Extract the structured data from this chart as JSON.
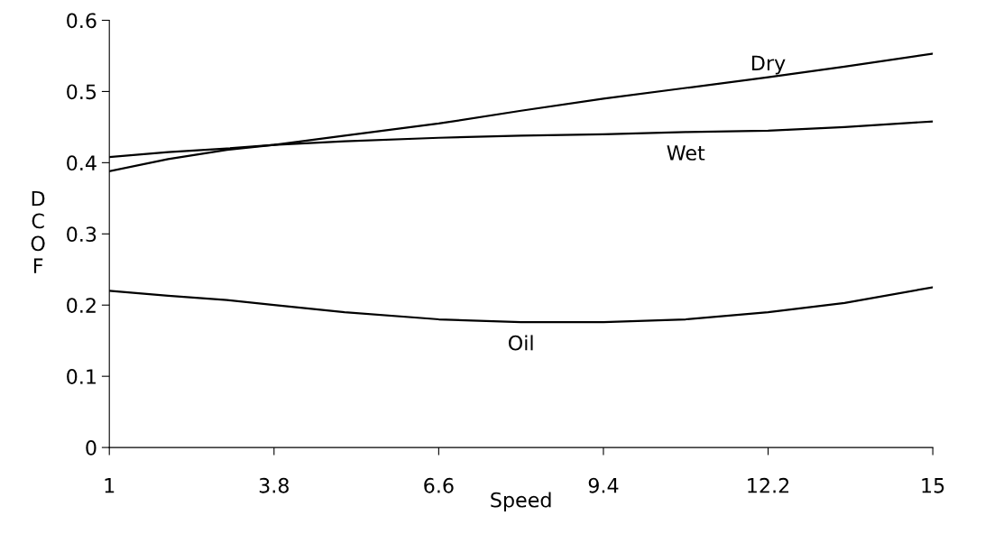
{
  "chart_data": {
    "type": "line",
    "xlabel": "Speed",
    "ylabel": "D\nC\nO\nF",
    "x": [
      1,
      2,
      3,
      3.8,
      5,
      6.6,
      8,
      9.4,
      10.8,
      12.2,
      13.5,
      15
    ],
    "series": [
      {
        "name": "Dry",
        "color": "#000000",
        "values": [
          0.388,
          0.405,
          0.418,
          0.425,
          0.438,
          0.455,
          0.473,
          0.49,
          0.505,
          0.52,
          0.535,
          0.553
        ]
      },
      {
        "name": "Wet",
        "color": "#000000",
        "values": [
          0.408,
          0.415,
          0.42,
          0.425,
          0.43,
          0.435,
          0.438,
          0.44,
          0.443,
          0.445,
          0.45,
          0.458
        ]
      },
      {
        "name": "Oil",
        "color": "#000000",
        "values": [
          0.22,
          0.213,
          0.207,
          0.2,
          0.19,
          0.18,
          0.176,
          0.176,
          0.18,
          0.19,
          0.203,
          0.225
        ]
      }
    ],
    "xlim": [
      1,
      15
    ],
    "xticks": [
      1,
      3.8,
      6.6,
      9.4,
      12.2,
      15
    ],
    "ylim": [
      0,
      0.6
    ],
    "yticks": [
      0,
      0.1,
      0.2,
      0.3,
      0.4,
      0.5,
      0.6
    ],
    "grid": false,
    "legend": false,
    "marker": "none",
    "line_style": "solid"
  }
}
